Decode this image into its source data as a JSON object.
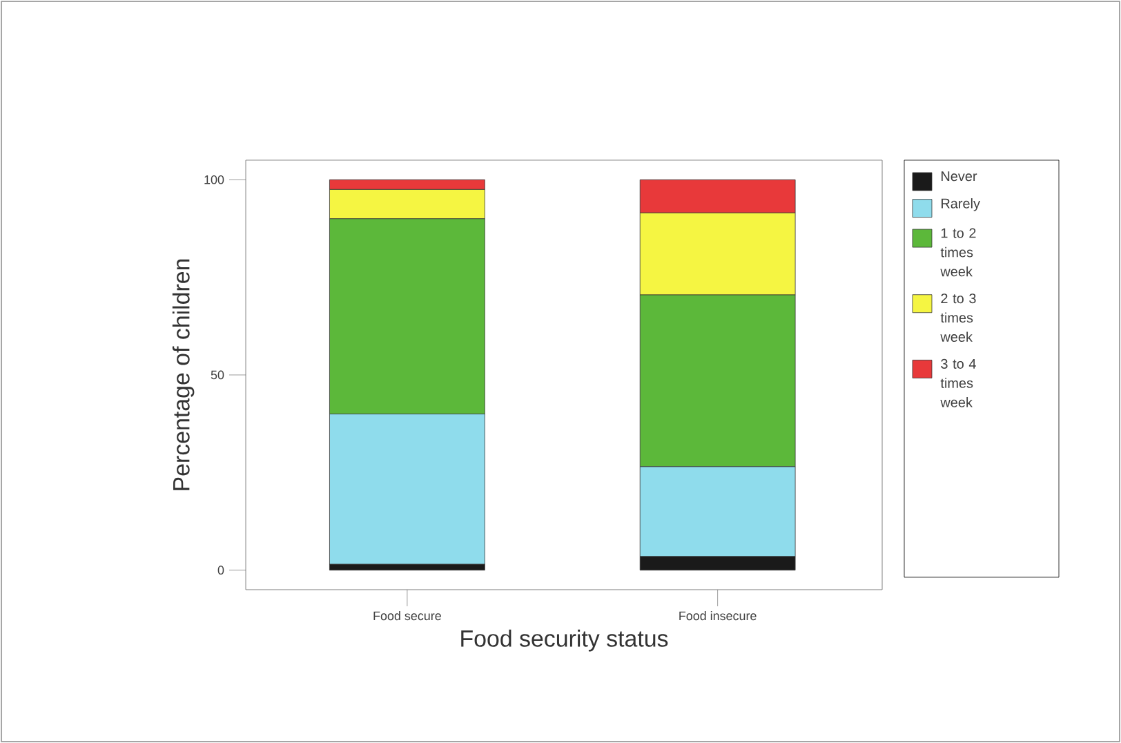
{
  "chart_data": {
    "type": "bar",
    "stacked": true,
    "xlabel": "Food security status",
    "ylabel": "Percentage of children",
    "categories": [
      "Food secure",
      "Food insecure"
    ],
    "series": [
      {
        "name": "Never",
        "color": "#1a1a1a",
        "values": [
          1.5,
          3.5
        ]
      },
      {
        "name": "Rarely",
        "color": "#8fdcec",
        "values": [
          38.5,
          23
        ]
      },
      {
        "name": "1 to 2 times week",
        "color": "#5cb83a",
        "values": [
          50,
          44
        ]
      },
      {
        "name": "2 to 3 times week",
        "color": "#f5f542",
        "values": [
          7.5,
          21
        ]
      },
      {
        "name": "3 to 4 times week",
        "color": "#e8393a",
        "values": [
          2.5,
          8.5
        ]
      }
    ],
    "ylim": [
      -5,
      105
    ],
    "yticks": [
      0,
      50,
      100
    ],
    "grid": false,
    "legend": "right"
  }
}
